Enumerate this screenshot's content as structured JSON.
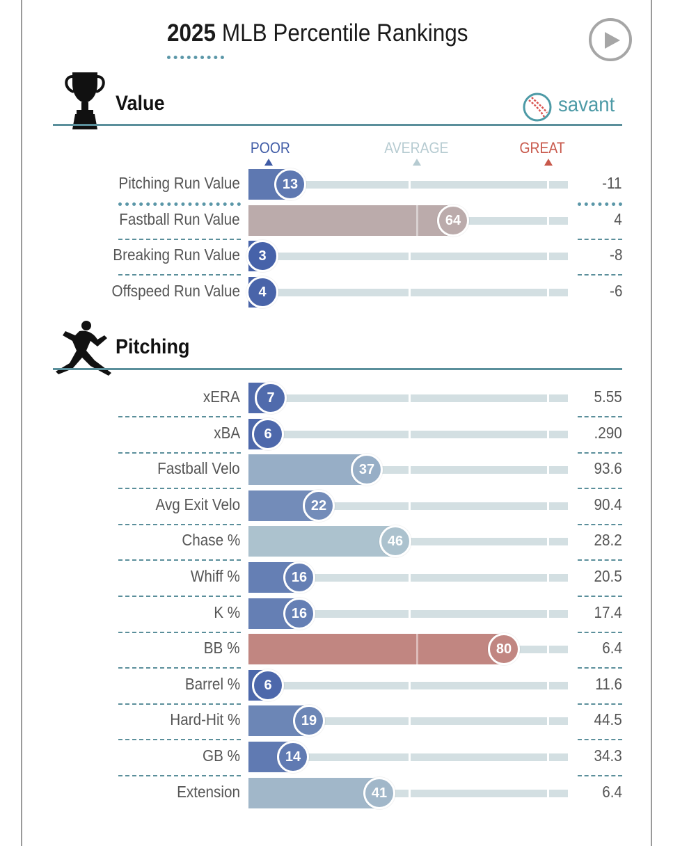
{
  "title": {
    "year": "2025",
    "rest": " MLB Percentile Rankings"
  },
  "brand": {
    "name": "savant"
  },
  "icons": {
    "play": "play-icon",
    "trophy": "trophy-icon",
    "pitcher": "pitcher-icon",
    "logo": "baseball-icon"
  },
  "scale": {
    "poor": "POOR",
    "average": "AVERAGE",
    "great": "GREAT"
  },
  "colors": {
    "poor": "#3f5ba6",
    "average": "#b6cbd1",
    "great": "#c8584b",
    "track": "#d3dfe2",
    "accent": "#5a8f9b"
  },
  "chart_data": {
    "type": "bar",
    "xlim": [
      0,
      100
    ],
    "sections": [
      {
        "title": "Value",
        "metrics": [
          {
            "label": "Pitching Run Value",
            "percentile": 13,
            "value": "-11"
          },
          {
            "label": "Fastball Run Value",
            "percentile": 64,
            "value": "4"
          },
          {
            "label": "Breaking Run Value",
            "percentile": 3,
            "value": "-8"
          },
          {
            "label": "Offspeed Run Value",
            "percentile": 4,
            "value": "-6"
          }
        ]
      },
      {
        "title": "Pitching",
        "metrics": [
          {
            "label": "xERA",
            "percentile": 7,
            "value": "5.55"
          },
          {
            "label": "xBA",
            "percentile": 6,
            "value": ".290"
          },
          {
            "label": "Fastball Velo",
            "percentile": 37,
            "value": "93.6"
          },
          {
            "label": "Avg Exit Velo",
            "percentile": 22,
            "value": "90.4"
          },
          {
            "label": "Chase %",
            "percentile": 46,
            "value": "28.2"
          },
          {
            "label": "Whiff %",
            "percentile": 16,
            "value": "20.5"
          },
          {
            "label": "K %",
            "percentile": 16,
            "value": "17.4"
          },
          {
            "label": "BB %",
            "percentile": 80,
            "value": "6.4"
          },
          {
            "label": "Barrel %",
            "percentile": 6,
            "value": "11.6"
          },
          {
            "label": "Hard-Hit %",
            "percentile": 19,
            "value": "44.5"
          },
          {
            "label": "GB %",
            "percentile": 14,
            "value": "34.3"
          },
          {
            "label": "Extension",
            "percentile": 41,
            "value": "6.4"
          }
        ]
      }
    ]
  }
}
